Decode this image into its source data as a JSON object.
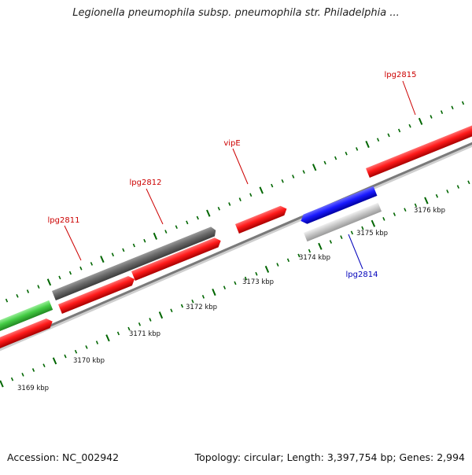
{
  "title": "Legionella pneumophila subsp. pneumophila str. Philadelphia ...",
  "footer": {
    "accession": "Accession: NC_002942",
    "summary": "Topology: circular; Length: 3,397,754 bp; Genes: 2,994"
  },
  "ruler": {
    "labels": [
      "3169 kbp",
      "3170 kbp",
      "3171 kbp",
      "3172 kbp",
      "3173 kbp",
      "3174 kbp",
      "3175 kbp",
      "3176 kbp"
    ]
  },
  "gene_labels": [
    {
      "text": "lpg2811",
      "color": "#cc0000"
    },
    {
      "text": "lpg2812",
      "color": "#cc0000"
    },
    {
      "text": "vipE",
      "color": "#cc0000"
    },
    {
      "text": "lpg2815",
      "color": "#cc0000"
    },
    {
      "text": "lpg2814",
      "color": "#0000bb"
    }
  ],
  "colors": {
    "forward_gene": "#ff1a1a",
    "pseudo_gene": "#6e6e6e",
    "reverse_gene": "#1a1aff",
    "rna_gene": "#44cc44",
    "light_gene": "#c8c8c8",
    "ruler": "#006600",
    "backbone": "#8a8a8a"
  }
}
